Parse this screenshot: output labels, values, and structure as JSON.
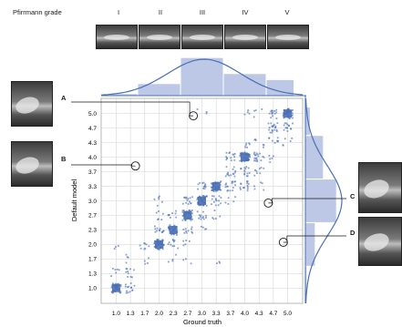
{
  "header": {
    "title": "Pfirrmann grade",
    "grades": [
      "I",
      "II",
      "III",
      "IV",
      "V"
    ]
  },
  "callouts": [
    "A",
    "B",
    "C",
    "D"
  ],
  "colors": {
    "accent": "#4a6fb5",
    "fill": "#bcc8e6",
    "marker": "#4a6fb5",
    "grid": "#cfcfcf"
  },
  "chart_data": {
    "type": "scatter",
    "xlabel": "Ground truth",
    "ylabel": "Default model",
    "x_ticks": [
      "1.0",
      "1.3",
      "1.7",
      "2.0",
      "2.3",
      "2.7",
      "3.0",
      "3.3",
      "3.7",
      "4.0",
      "4.3",
      "4.7",
      "5.0"
    ],
    "y_ticks": [
      "1.0",
      "1.3",
      "1.7",
      "2.0",
      "2.3",
      "2.7",
      "3.0",
      "3.3",
      "3.7",
      "4.0",
      "4.3",
      "4.7",
      "5.0"
    ],
    "x_tick_values": [
      1.0,
      1.333,
      1.667,
      2.0,
      2.333,
      2.667,
      3.0,
      3.333,
      3.667,
      4.0,
      4.333,
      4.667,
      5.0
    ],
    "xlim": [
      0.65,
      5.35
    ],
    "ylim": [
      0.65,
      5.35
    ],
    "grid": true,
    "clusters": [
      {
        "x": 1.0,
        "y": 1.0,
        "n": 40
      },
      {
        "x": 1.333,
        "y": 1.0,
        "n": 14
      },
      {
        "x": 1.333,
        "y": 1.333,
        "n": 10
      },
      {
        "x": 1.0,
        "y": 1.333,
        "n": 6
      },
      {
        "x": 1.0,
        "y": 2.0,
        "n": 3
      },
      {
        "x": 1.333,
        "y": 1.667,
        "n": 4
      },
      {
        "x": 1.667,
        "y": 2.0,
        "n": 8
      },
      {
        "x": 1.667,
        "y": 1.667,
        "n": 4
      },
      {
        "x": 2.0,
        "y": 2.0,
        "n": 45
      },
      {
        "x": 2.0,
        "y": 2.333,
        "n": 12
      },
      {
        "x": 2.0,
        "y": 2.667,
        "n": 6
      },
      {
        "x": 2.0,
        "y": 3.0,
        "n": 6
      },
      {
        "x": 2.333,
        "y": 2.0,
        "n": 10
      },
      {
        "x": 2.333,
        "y": 2.333,
        "n": 30
      },
      {
        "x": 2.333,
        "y": 2.667,
        "n": 8
      },
      {
        "x": 2.333,
        "y": 1.667,
        "n": 4
      },
      {
        "x": 2.667,
        "y": 2.333,
        "n": 10
      },
      {
        "x": 2.667,
        "y": 2.667,
        "n": 35
      },
      {
        "x": 2.667,
        "y": 3.0,
        "n": 14
      },
      {
        "x": 2.667,
        "y": 2.0,
        "n": 5
      },
      {
        "x": 2.667,
        "y": 1.667,
        "n": 3
      },
      {
        "x": 3.0,
        "y": 2.667,
        "n": 12
      },
      {
        "x": 3.0,
        "y": 3.0,
        "n": 45
      },
      {
        "x": 3.0,
        "y": 3.333,
        "n": 12
      },
      {
        "x": 3.0,
        "y": 2.333,
        "n": 4
      },
      {
        "x": 3.333,
        "y": 3.0,
        "n": 14
      },
      {
        "x": 3.333,
        "y": 3.333,
        "n": 40
      },
      {
        "x": 3.333,
        "y": 2.667,
        "n": 5
      },
      {
        "x": 3.333,
        "y": 1.667,
        "n": 3
      },
      {
        "x": 3.667,
        "y": 3.333,
        "n": 16
      },
      {
        "x": 3.667,
        "y": 3.667,
        "n": 14
      },
      {
        "x": 3.667,
        "y": 4.0,
        "n": 14
      },
      {
        "x": 3.667,
        "y": 3.0,
        "n": 5
      },
      {
        "x": 4.0,
        "y": 4.0,
        "n": 45
      },
      {
        "x": 4.0,
        "y": 3.667,
        "n": 14
      },
      {
        "x": 4.0,
        "y": 3.333,
        "n": 14
      },
      {
        "x": 4.0,
        "y": 4.333,
        "n": 6
      },
      {
        "x": 4.333,
        "y": 4.0,
        "n": 18
      },
      {
        "x": 4.333,
        "y": 3.667,
        "n": 8
      },
      {
        "x": 4.333,
        "y": 4.333,
        "n": 6
      },
      {
        "x": 4.333,
        "y": 3.333,
        "n": 5
      },
      {
        "x": 4.333,
        "y": 5.0,
        "n": 4
      },
      {
        "x": 4.667,
        "y": 4.667,
        "n": 20
      },
      {
        "x": 4.667,
        "y": 4.333,
        "n": 8
      },
      {
        "x": 4.667,
        "y": 5.0,
        "n": 14
      },
      {
        "x": 4.667,
        "y": 4.0,
        "n": 5
      },
      {
        "x": 5.0,
        "y": 5.0,
        "n": 45
      },
      {
        "x": 5.0,
        "y": 4.667,
        "n": 14
      },
      {
        "x": 5.0,
        "y": 4.333,
        "n": 5
      },
      {
        "x": 3.0,
        "y": 5.0,
        "n": 3
      },
      {
        "x": 4.0,
        "y": 5.0,
        "n": 4
      }
    ],
    "highlighted_points": [
      {
        "label": "A",
        "x": 2.8,
        "y": 4.95
      },
      {
        "label": "B",
        "x": 1.45,
        "y": 3.8
      },
      {
        "label": "C",
        "x": 4.55,
        "y": 2.95
      },
      {
        "label": "D",
        "x": 4.9,
        "y": 2.05
      }
    ],
    "x_histogram": [
      {
        "label": "I",
        "from": 0.85,
        "to": 1.5,
        "value": 0.05
      },
      {
        "label": "II",
        "from": 1.5,
        "to": 2.5,
        "value": 0.3
      },
      {
        "label": "III",
        "from": 2.5,
        "to": 3.5,
        "value": 0.95
      },
      {
        "label": "IV",
        "from": 3.5,
        "to": 4.5,
        "value": 0.55
      },
      {
        "label": "V",
        "from": 4.5,
        "to": 5.15,
        "value": 0.4
      }
    ],
    "y_histogram": [
      {
        "from": 0.85,
        "to": 1.5,
        "value": 0.05
      },
      {
        "from": 1.5,
        "to": 2.5,
        "value": 0.3
      },
      {
        "from": 2.5,
        "to": 3.5,
        "value": 0.95
      },
      {
        "from": 3.5,
        "to": 4.5,
        "value": 0.55
      },
      {
        "from": 4.5,
        "to": 5.15,
        "value": 0.15
      }
    ]
  }
}
